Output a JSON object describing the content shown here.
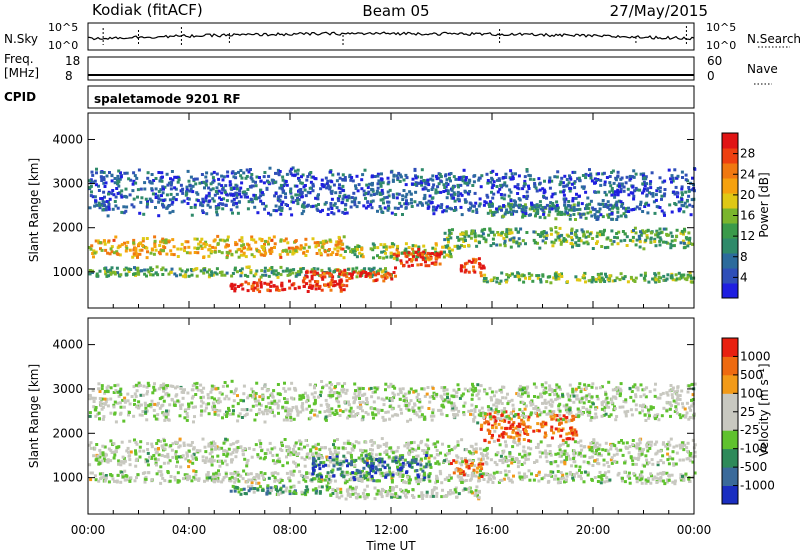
{
  "header": {
    "station": "Kodiak (fitACF)",
    "beam": "Beam 05",
    "date": "27/May/2015"
  },
  "strip": {
    "nsky_label": "N.Sky",
    "nsky_ticks": [
      "10^5",
      "10^0"
    ],
    "nsearch_label": "N.Search",
    "nsearch_ticks": [
      "10^5",
      "10^0"
    ],
    "freq_label": "Freq.",
    "freq_unit": "[MHz]",
    "freq_ticks": [
      "18",
      "8"
    ],
    "nave_label": "Nave",
    "nave_ticks": [
      "60",
      "0"
    ],
    "cpid_label": "CPID",
    "cpid_value": "spaletamode 9201 RF"
  },
  "x_axis": {
    "label": "Time UT",
    "ticks": [
      "00:00",
      "04:00",
      "08:00",
      "12:00",
      "16:00",
      "20:00",
      "00:00"
    ]
  },
  "chart_data": [
    {
      "type": "heatmap",
      "panel": "power",
      "ylabel": "Slant Range [km]",
      "y_ticks": [
        1000,
        2000,
        3000,
        4000
      ],
      "ylim": [
        180,
        4600
      ],
      "xlim_hours": [
        0,
        24
      ],
      "colorbar": {
        "label": "Power [dB]",
        "ticks": [
          "4",
          "8",
          "12",
          "16",
          "20",
          "24",
          "28"
        ],
        "colors": [
          "#1f1fe0",
          "#2f4fb8",
          "#2c6b9c",
          "#2f8a6a",
          "#3a9a4a",
          "#7ab52d",
          "#e0c814",
          "#f5a10e",
          "#f07810",
          "#ee4010",
          "#e01515"
        ]
      },
      "features": [
        {
          "t_start": 0.0,
          "t_end": 10.2,
          "range_km": 1550,
          "width_km": 320,
          "level": 0.65
        },
        {
          "t_start": 10.0,
          "t_end": 14.5,
          "range_km": 1450,
          "width_km": 260,
          "level": 0.5
        },
        {
          "t_start": 14.0,
          "t_end": 24.0,
          "range_km": 1750,
          "width_km": 320,
          "level": 0.42
        },
        {
          "t_start": 0.0,
          "t_end": 12.0,
          "range_km": 980,
          "width_km": 160,
          "level": 0.4
        },
        {
          "t_start": 5.6,
          "t_end": 10.2,
          "range_km": 670,
          "width_km": 180,
          "level": 0.95
        },
        {
          "t_start": 8.4,
          "t_end": 12.2,
          "range_km": 900,
          "width_km": 180,
          "level": 0.88
        },
        {
          "t_start": 12.0,
          "t_end": 14.0,
          "range_km": 1300,
          "width_km": 300,
          "level": 0.9
        },
        {
          "t_start": 14.7,
          "t_end": 15.7,
          "range_km": 1120,
          "width_km": 300,
          "level": 0.9
        },
        {
          "t_start": 15.6,
          "t_end": 24.0,
          "range_km": 850,
          "width_km": 160,
          "level": 0.45
        },
        {
          "t_start": 15.8,
          "t_end": 21.3,
          "range_km": 2350,
          "width_km": 240,
          "level": 0.35
        },
        {
          "t_start": 0.0,
          "t_end": 24.0,
          "range_km": 2800,
          "width_km": 700,
          "level": 0.18
        }
      ]
    },
    {
      "type": "heatmap",
      "panel": "velocity",
      "ylabel": "Slant Range [km]",
      "y_ticks": [
        1000,
        2000,
        3000,
        4000
      ],
      "ylim": [
        180,
        4600
      ],
      "xlim_hours": [
        0,
        24
      ],
      "colorbar": {
        "label": "Velocity [m s⁻¹]",
        "ticks": [
          "1000",
          "500",
          "100",
          "25",
          "-25",
          "-100",
          "-500",
          "-1000"
        ],
        "colors": [
          "#1a2ec0",
          "#3a6a9a",
          "#2e8a5a",
          "#5fc22e",
          "#c8c8c0",
          "#c8c8c0",
          "#f29a18",
          "#ee6a10",
          "#e82010"
        ]
      },
      "features": [
        {
          "t_start": 0.0,
          "t_end": 24.0,
          "range_km": 1550,
          "width_km": 420,
          "level": 0.5
        },
        {
          "t_start": 0.0,
          "t_end": 24.0,
          "range_km": 1000,
          "width_km": 200,
          "level": 0.5
        },
        {
          "t_start": 5.6,
          "t_end": 9.5,
          "range_km": 700,
          "width_km": 160,
          "level": 0.32
        },
        {
          "t_start": 9.5,
          "t_end": 15.5,
          "range_km": 650,
          "width_km": 200,
          "level": 0.5
        },
        {
          "t_start": 8.8,
          "t_end": 13.6,
          "range_km": 1200,
          "width_km": 380,
          "level": 0.2
        },
        {
          "t_start": 14.3,
          "t_end": 15.6,
          "range_km": 1250,
          "width_km": 300,
          "level": 0.8
        },
        {
          "t_start": 15.5,
          "t_end": 19.3,
          "range_km": 2150,
          "width_km": 520,
          "level": 0.82
        },
        {
          "t_start": 0.0,
          "t_end": 24.0,
          "range_km": 2700,
          "width_km": 600,
          "level": 0.5
        }
      ]
    }
  ]
}
